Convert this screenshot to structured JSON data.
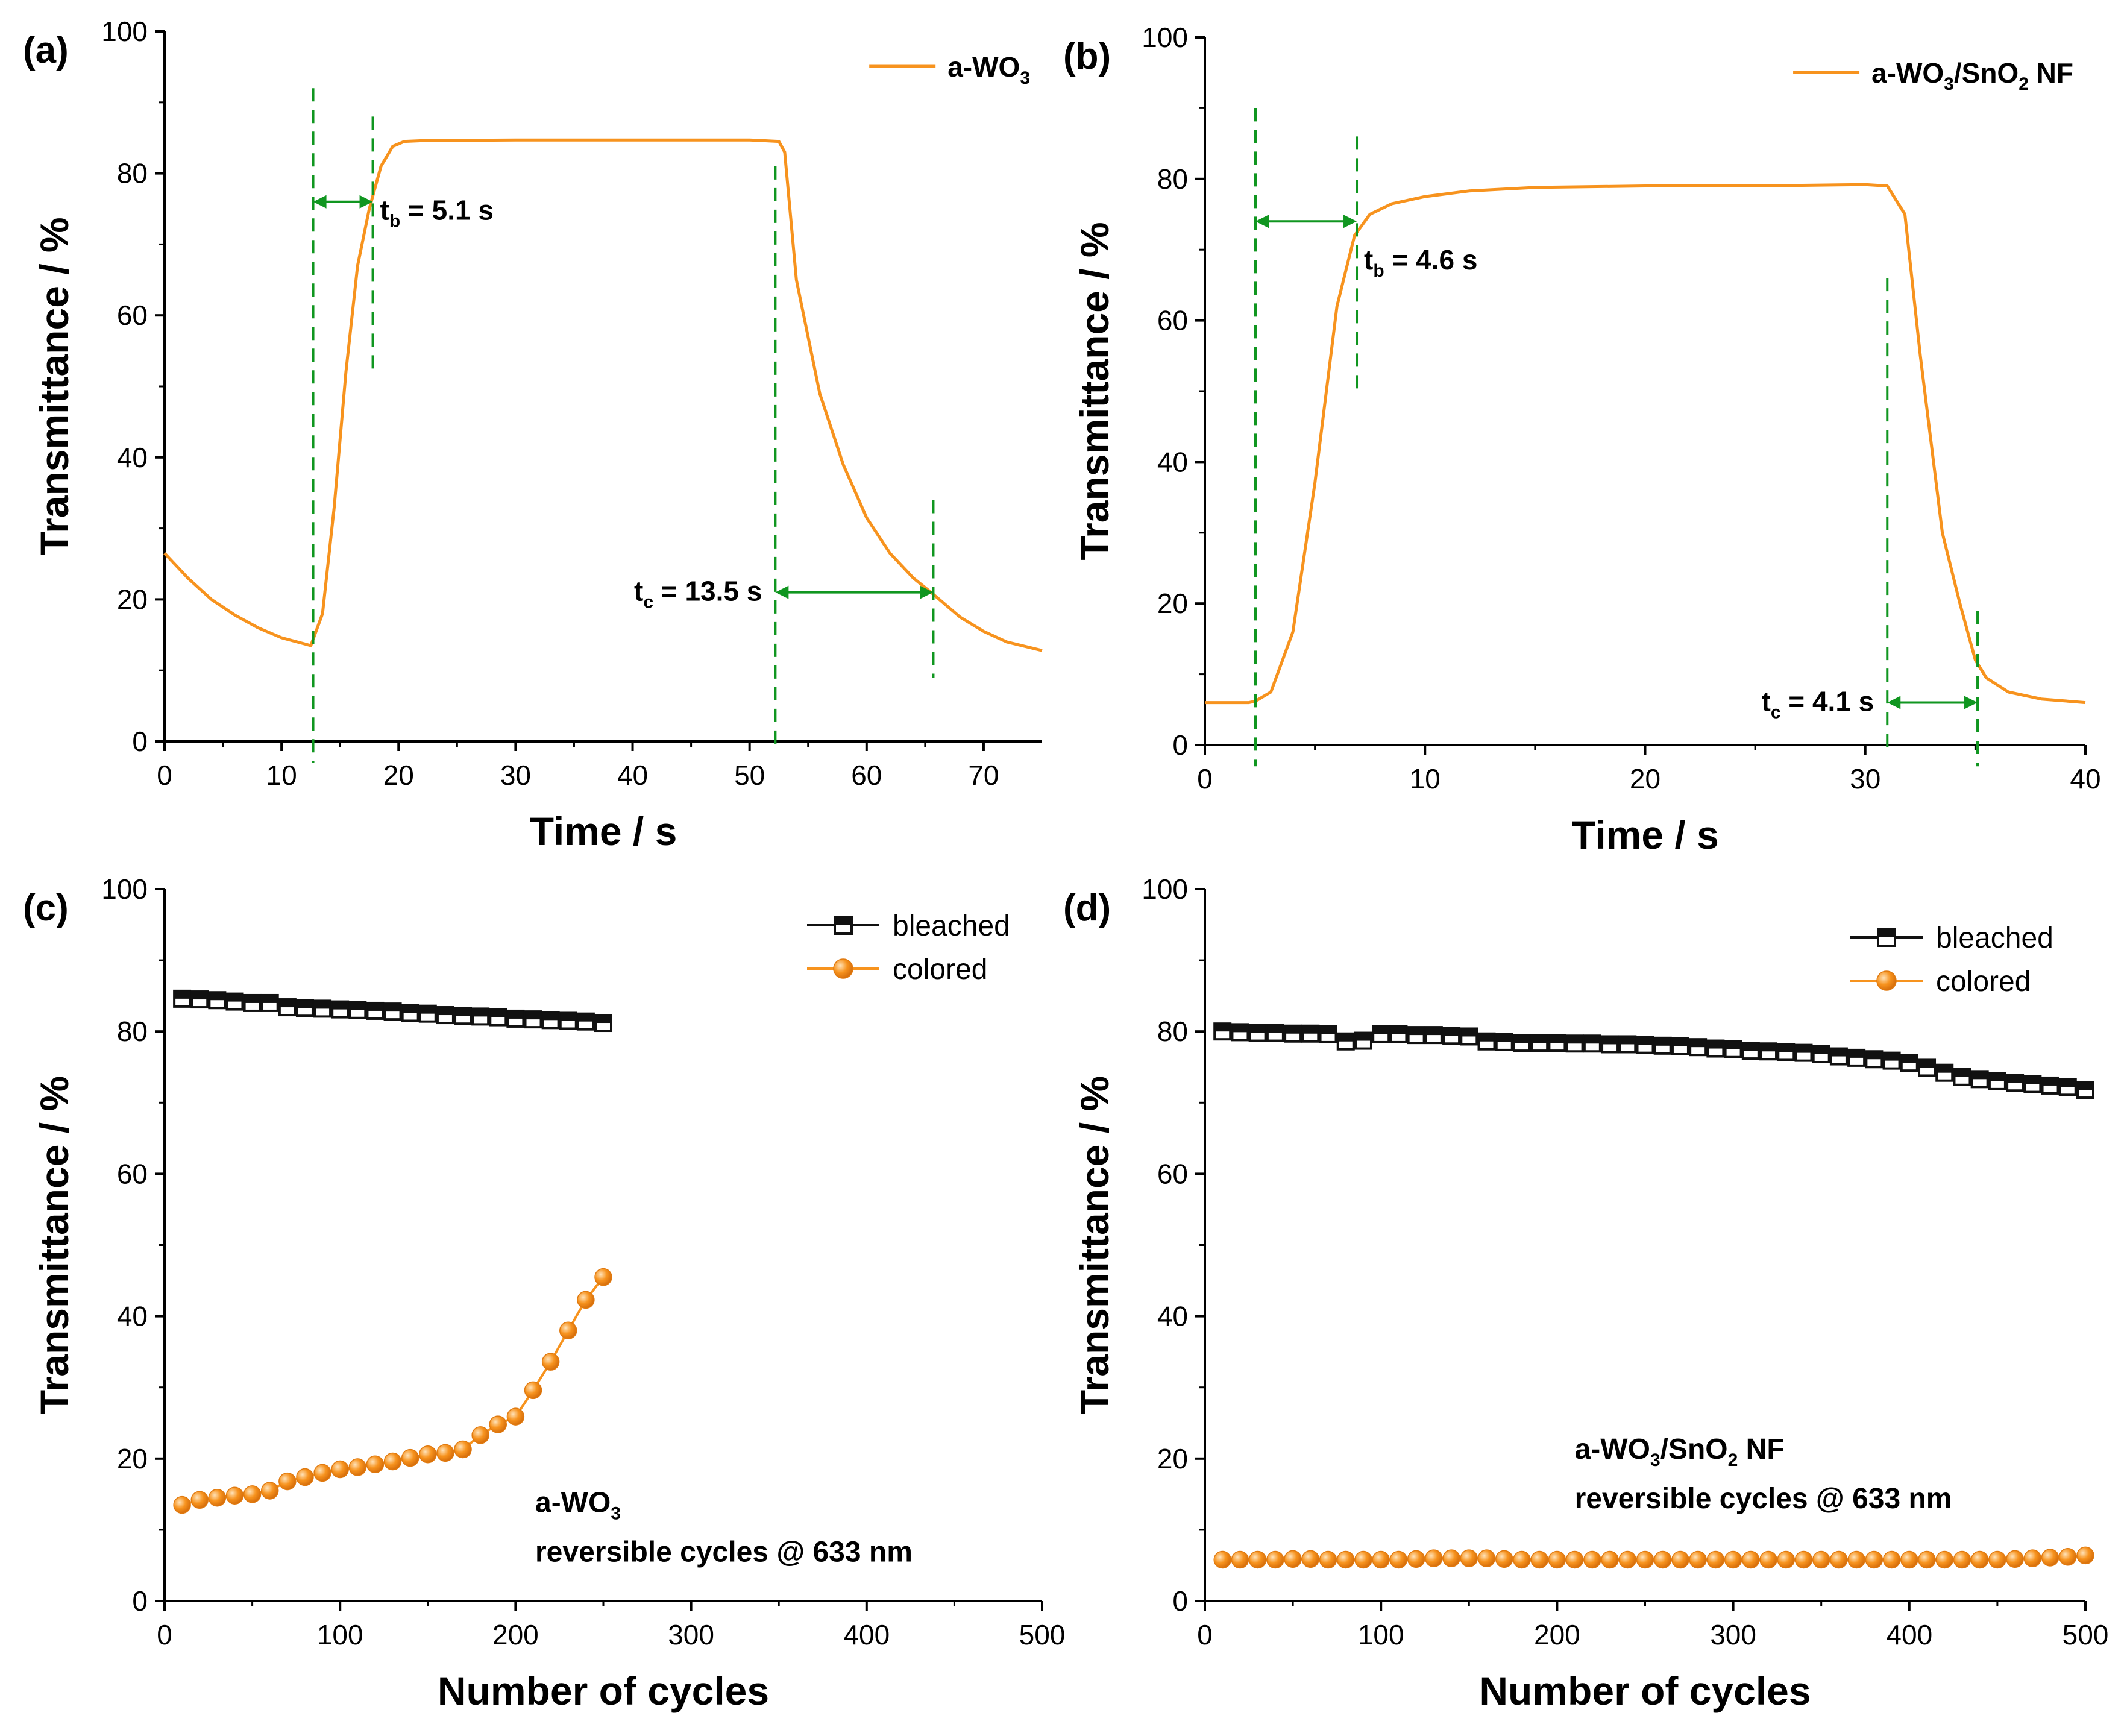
{
  "colors": {
    "series_orange": "#F7931E",
    "bleached_black": "#111111",
    "guide_green": "#109620",
    "axis": "#000000"
  },
  "chart_data": [
    {
      "id": "a",
      "type": "line",
      "panel_label": "(a)",
      "xlabel": "Time / s",
      "ylabel": "Transmittance / %",
      "xlim": [
        0,
        75
      ],
      "ylim": [
        0,
        100
      ],
      "xticks": [
        0,
        10,
        20,
        30,
        40,
        50,
        60,
        70
      ],
      "yticks": [
        0,
        20,
        40,
        60,
        80,
        100
      ],
      "legend": "top-right",
      "series": [
        {
          "name": "a-WO3",
          "legend_main": "a-WO",
          "legend_sub": "3",
          "legend_tail": "",
          "color": "#F7931E",
          "x": [
            0,
            2,
            4,
            6,
            8,
            10,
            12.5,
            13.5,
            14.5,
            15.5,
            16.5,
            17.5,
            18.5,
            19.5,
            20.5,
            22,
            30,
            40,
            50,
            52.5,
            53,
            54,
            56,
            58,
            60,
            62,
            64,
            65.5,
            68,
            70,
            72,
            75
          ],
          "y": [
            26.5,
            23,
            20,
            17.8,
            16,
            14.6,
            13.5,
            18,
            33,
            52,
            67,
            75,
            81,
            83.8,
            84.5,
            84.6,
            84.7,
            84.7,
            84.7,
            84.5,
            83,
            65,
            49,
            39,
            31.5,
            26.5,
            23,
            21,
            17.5,
            15.5,
            14,
            12.8
          ]
        }
      ],
      "annotations": [
        {
          "main": "t",
          "sub": "b",
          "rest": " = 5.1 s",
          "x_start": 12.7,
          "x_end": 17.8,
          "y": 76
        },
        {
          "main": "t",
          "sub": "c",
          "rest": " = 13.5 s",
          "x_start": 52.2,
          "x_end": 65.7,
          "y": 21
        }
      ]
    },
    {
      "id": "b",
      "type": "line",
      "panel_label": "(b)",
      "xlabel": "Time / s",
      "ylabel": "Transmittance / %",
      "xlim": [
        0,
        40
      ],
      "ylim": [
        0,
        100
      ],
      "xticks": [
        0,
        10,
        20,
        30,
        40
      ],
      "yticks": [
        0,
        20,
        40,
        60,
        80,
        100
      ],
      "legend": "top-right",
      "series": [
        {
          "name": "a-WO3/SnO2 NF",
          "legend_main": "a-WO",
          "legend_sub": "3",
          "legend_mid": "/SnO",
          "legend_sub2": "2",
          "legend_tail": " NF",
          "color": "#F7931E",
          "x": [
            0,
            2,
            2.3,
            3,
            4,
            5,
            6,
            6.8,
            7.5,
            8.5,
            10,
            12,
            15,
            20,
            25,
            30,
            31,
            31.8,
            32.5,
            33.5,
            34.3,
            35,
            35.5,
            36.5,
            38,
            40
          ],
          "y": [
            6,
            6,
            6.2,
            7.5,
            16,
            37,
            62,
            72,
            75,
            76.5,
            77.5,
            78.3,
            78.8,
            79,
            79,
            79.2,
            79,
            75,
            55,
            30,
            20,
            12,
            9.5,
            7.5,
            6.5,
            6
          ]
        }
      ],
      "annotations": [
        {
          "main": "t",
          "sub": "b",
          "rest": " = 4.6 s",
          "x_start": 2.3,
          "x_end": 6.9,
          "y": 74
        },
        {
          "main": "t",
          "sub": "c",
          "rest": " = 4.1 s",
          "x_start": 31.0,
          "x_end": 35.1,
          "y": 6
        }
      ]
    },
    {
      "id": "c",
      "type": "scatter",
      "panel_label": "(c)",
      "xlabel": "Number of cycles",
      "ylabel": "Transmittance / %",
      "xlim": [
        0,
        500
      ],
      "ylim": [
        0,
        100
      ],
      "xticks": [
        0,
        100,
        200,
        300,
        400,
        500
      ],
      "yticks": [
        0,
        20,
        40,
        60,
        80,
        100
      ],
      "legend": "top-right",
      "note_line1_main": "a-WO",
      "note_line1_sub": "3",
      "note_line1_tail": "",
      "note_line2": "reversible cycles @ 633 nm",
      "series": [
        {
          "name": "bleached",
          "marker": "half-filled-square",
          "color": "#111111",
          "x": [
            10,
            20,
            30,
            40,
            50,
            60,
            70,
            80,
            90,
            100,
            110,
            120,
            130,
            140,
            150,
            160,
            170,
            180,
            190,
            200,
            210,
            220,
            230,
            240,
            250
          ],
          "y": [
            84.6,
            84.5,
            84.4,
            84.2,
            84.0,
            84.0,
            83.4,
            83.3,
            83.2,
            83.1,
            83.0,
            82.9,
            82.8,
            82.6,
            82.5,
            82.3,
            82.2,
            82.1,
            82.0,
            81.8,
            81.7,
            81.6,
            81.5,
            81.4,
            81.2
          ]
        },
        {
          "name": "colored",
          "marker": "sphere",
          "color": "#F7931E",
          "x": [
            10,
            20,
            30,
            40,
            50,
            60,
            70,
            80,
            90,
            100,
            110,
            120,
            130,
            140,
            150,
            160,
            170,
            180,
            190,
            200,
            210,
            220,
            230,
            240,
            250
          ],
          "y": [
            13.5,
            14.2,
            14.5,
            14.8,
            15.0,
            15.5,
            16.8,
            17.4,
            18.0,
            18.5,
            18.8,
            19.2,
            19.6,
            20.1,
            20.6,
            20.8,
            21.3,
            23.3,
            24.8,
            25.9,
            29.6,
            33.6,
            38.0,
            42.3,
            45.5
          ]
        }
      ]
    },
    {
      "id": "d",
      "type": "scatter",
      "panel_label": "(d)",
      "xlabel": "Number of cycles",
      "ylabel": "Transmittance / %",
      "xlim": [
        0,
        500
      ],
      "ylim": [
        0,
        100
      ],
      "xticks": [
        0,
        100,
        200,
        300,
        400,
        500
      ],
      "yticks": [
        0,
        20,
        40,
        60,
        80,
        100
      ],
      "legend": "top-right",
      "note_line1_main": "a-WO",
      "note_line1_sub": "3",
      "note_line1_tail": "/SnO",
      "note_line1_sub2": "2",
      "note_line1_end": " NF",
      "note_line2": "reversible cycles @ 633 nm",
      "series": [
        {
          "name": "bleached",
          "marker": "half-filled-square",
          "color": "#111111",
          "x": [
            10,
            20,
            30,
            40,
            50,
            60,
            70,
            80,
            90,
            100,
            110,
            120,
            130,
            140,
            150,
            160,
            170,
            180,
            190,
            200,
            210,
            220,
            230,
            240,
            250,
            260,
            270,
            280,
            290,
            300,
            310,
            320,
            330,
            340,
            350,
            360,
            370,
            380,
            390,
            400,
            410,
            420,
            430,
            440,
            450,
            460,
            470,
            480,
            490,
            500
          ],
          "y": [
            80.0,
            79.9,
            79.8,
            79.8,
            79.7,
            79.7,
            79.6,
            78.6,
            78.7,
            79.6,
            79.6,
            79.5,
            79.5,
            79.4,
            79.3,
            78.6,
            78.5,
            78.4,
            78.4,
            78.4,
            78.3,
            78.3,
            78.2,
            78.2,
            78.1,
            78.0,
            77.9,
            77.8,
            77.6,
            77.5,
            77.3,
            77.2,
            77.1,
            77.0,
            76.8,
            76.5,
            76.3,
            76.1,
            75.9,
            75.6,
            74.9,
            74.2,
            73.6,
            73.3,
            73.0,
            72.8,
            72.6,
            72.4,
            72.2,
            71.8
          ]
        },
        {
          "name": "colored",
          "marker": "sphere",
          "color": "#F7931E",
          "x": [
            10,
            20,
            30,
            40,
            50,
            60,
            70,
            80,
            90,
            100,
            110,
            120,
            130,
            140,
            150,
            160,
            170,
            180,
            190,
            200,
            210,
            220,
            230,
            240,
            250,
            260,
            270,
            280,
            290,
            300,
            310,
            320,
            330,
            340,
            350,
            360,
            370,
            380,
            390,
            400,
            410,
            420,
            430,
            440,
            450,
            460,
            470,
            480,
            490,
            500
          ],
          "y": [
            5.8,
            5.8,
            5.8,
            5.8,
            5.9,
            5.9,
            5.8,
            5.8,
            5.8,
            5.8,
            5.8,
            5.9,
            6.0,
            6.0,
            6.0,
            6.0,
            5.9,
            5.8,
            5.8,
            5.8,
            5.8,
            5.8,
            5.8,
            5.8,
            5.8,
            5.8,
            5.8,
            5.8,
            5.8,
            5.8,
            5.8,
            5.8,
            5.8,
            5.8,
            5.8,
            5.8,
            5.8,
            5.8,
            5.8,
            5.8,
            5.8,
            5.8,
            5.8,
            5.8,
            5.8,
            5.9,
            6.0,
            6.1,
            6.2,
            6.4
          ]
        }
      ]
    }
  ]
}
